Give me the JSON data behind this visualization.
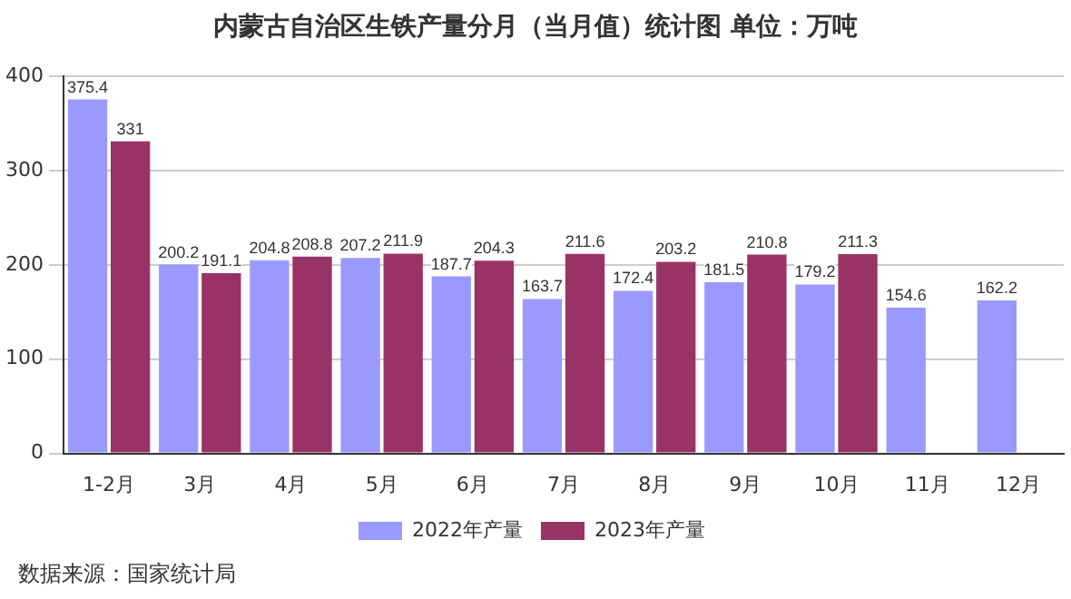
{
  "chart_data": {
    "type": "bar",
    "title": "内蒙古自治区生铁产量分月（当月值）统计图 单位：万吨",
    "categories": [
      "1-2月",
      "3月",
      "4月",
      "5月",
      "6月",
      "7月",
      "8月",
      "9月",
      "10月",
      "11月",
      "12月"
    ],
    "series": [
      {
        "name": "2022年产量",
        "color": "#9999ff",
        "values": [
          375.4,
          200.2,
          204.8,
          207.2,
          187.7,
          163.7,
          172.4,
          181.5,
          179.2,
          154.6,
          162.2
        ]
      },
      {
        "name": "2023年产量",
        "color": "#993366",
        "values": [
          331,
          191.1,
          208.8,
          211.9,
          204.3,
          211.6,
          203.2,
          210.8,
          211.3,
          null,
          null
        ]
      }
    ],
    "ylim": [
      0,
      400
    ],
    "yticks": [
      0,
      100,
      200,
      300,
      400
    ],
    "grid": "y",
    "legend": "bottom",
    "data_labels": true,
    "annotations": [
      "数据来源：国家统计局"
    ]
  }
}
